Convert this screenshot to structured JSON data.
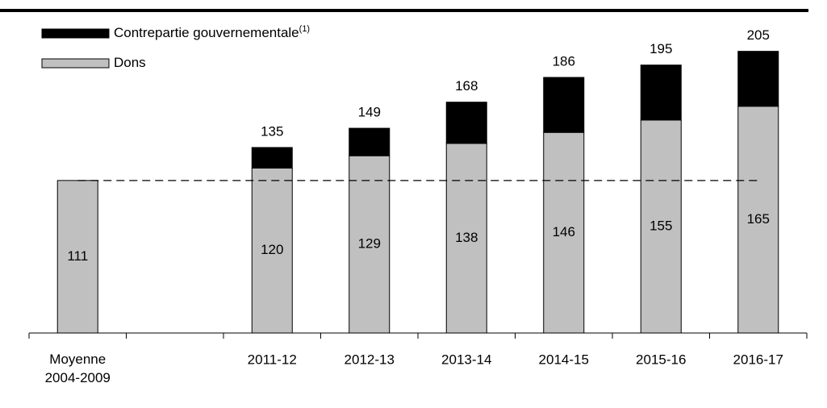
{
  "chart_data": {
    "type": "stacked_bar",
    "categories": [
      "Moyenne 2004-2009",
      null,
      "2011-12",
      "2012-13",
      "2013-14",
      "2014-15",
      "2015-16",
      "2016-17"
    ],
    "series": [
      {
        "name": "Dons",
        "color": "#c0c0c0",
        "label_color": "#000000",
        "values": [
          111,
          null,
          120,
          129,
          138,
          146,
          155,
          165
        ]
      },
      {
        "name": "Contrepartie gouvernementale",
        "footnote_marker": "(1)",
        "color": "#000000",
        "label_color": "#ffffff",
        "values": [
          null,
          null,
          15,
          20,
          30,
          40,
          40,
          40
        ]
      }
    ],
    "totals": [
      null,
      null,
      135,
      149,
      168,
      186,
      195,
      205
    ],
    "reference_line": 111,
    "ylim": [
      0,
      240
    ],
    "legend": "top-left"
  }
}
